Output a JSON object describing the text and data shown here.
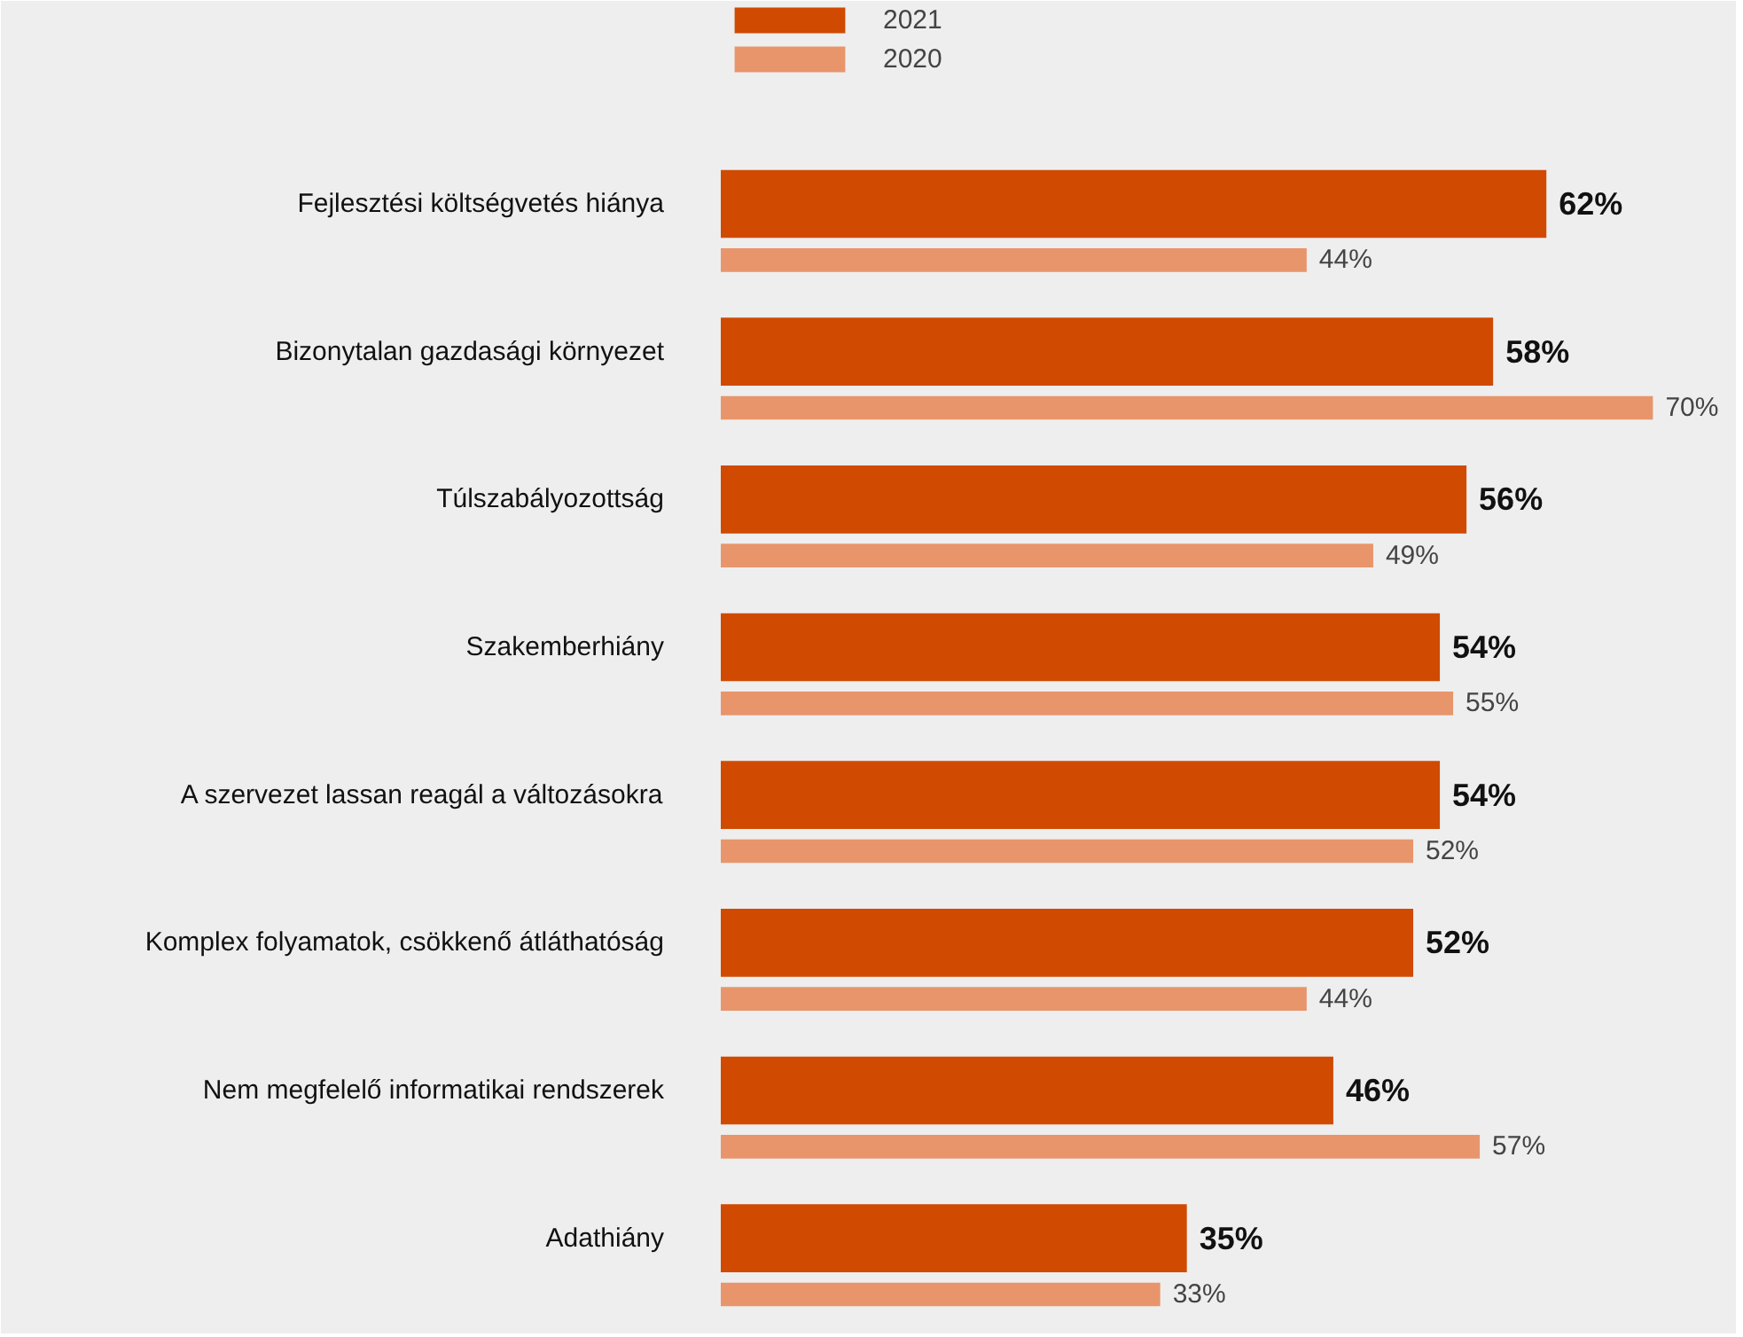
{
  "chart_data": {
    "type": "bar",
    "orientation": "horizontal",
    "legend": "top",
    "grid": false,
    "categories": [
      "Fejlesztési költségvetés hiánya",
      "Bizonytalan gazdasági környezet",
      "Túlszabályozottság",
      "Szakemberhiány",
      "A szervezet lassan reagál a változásokra",
      "Komplex folyamatok, csökkenő átláthatóság",
      "Nem megfelelő informatikai rendszerek",
      "Adathiány"
    ],
    "series": [
      {
        "name": "2021",
        "color": "#d04a02",
        "values": [
          62,
          58,
          56,
          54,
          54,
          52,
          46,
          35
        ],
        "value_labels": [
          "62%",
          "58%",
          "56%",
          "54%",
          "54%",
          "52%",
          "46%",
          "35%"
        ]
      },
      {
        "name": "2020",
        "color": "#e8956b",
        "values": [
          44,
          70,
          49,
          55,
          52,
          44,
          57,
          33
        ],
        "value_labels": [
          "44%",
          "70%",
          "49%",
          "55%",
          "52%",
          "44%",
          "57%",
          "33%"
        ]
      }
    ]
  }
}
